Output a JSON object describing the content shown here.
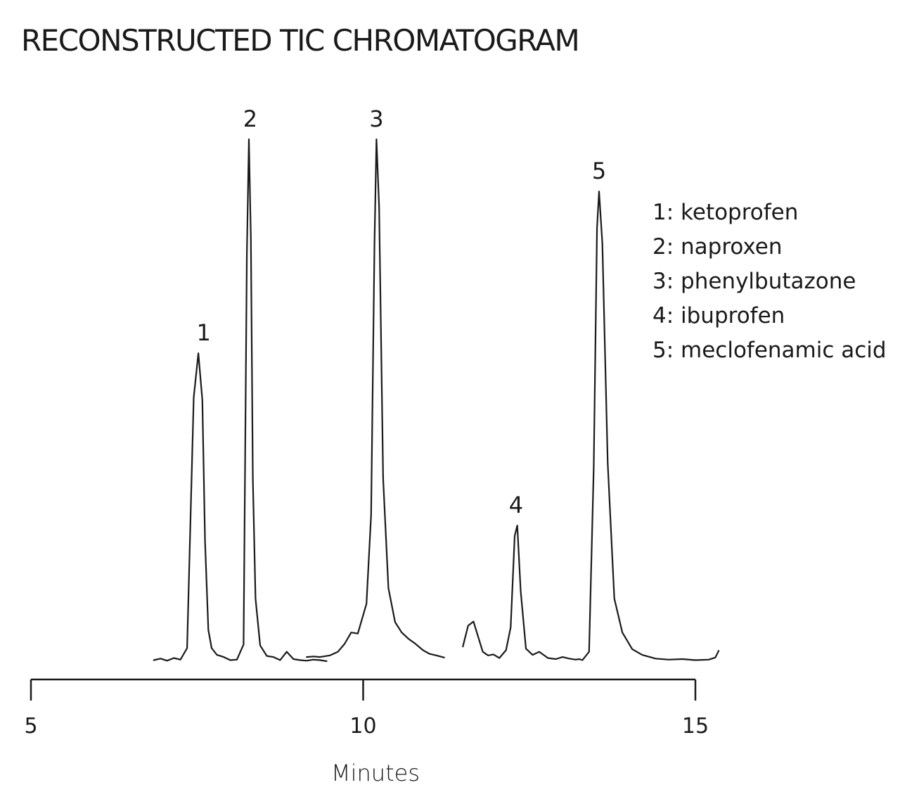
{
  "chart_data": {
    "type": "line",
    "title": "RECONSTRUCTED TIC CHROMATOGRAM",
    "xlabel": "Minutes",
    "ylabel": "",
    "xlim": [
      5,
      15
    ],
    "ylim": [
      0,
      100
    ],
    "x_ticks": [
      5,
      10,
      15
    ],
    "grid": false,
    "y_axis_visible": false,
    "legend_position": "right",
    "legend": [
      {
        "id": "1",
        "text": "1: ketoprofen"
      },
      {
        "id": "2",
        "text": "2: naproxen"
      },
      {
        "id": "3",
        "text": "3: phenylbutazone"
      },
      {
        "id": "4",
        "text": "4: ibuprofen"
      },
      {
        "id": "5",
        "text": "5: meclofenamic acid"
      }
    ],
    "peaks": [
      {
        "label": "1",
        "compound": "ketoprofen",
        "retention_time": 7.6,
        "height": 59
      },
      {
        "label": "2",
        "compound": "naproxen",
        "retention_time": 8.3,
        "height": 100
      },
      {
        "label": "3",
        "compound": "phenylbutazone",
        "retention_time": 10.2,
        "height": 100
      },
      {
        "label": "4",
        "compound": "ibuprofen",
        "retention_time": 12.3,
        "height": 26
      },
      {
        "label": "5",
        "compound": "meclofenamic acid",
        "retention_time": 13.55,
        "height": 90
      }
    ],
    "segments": [
      {
        "x": [
          6.85,
          6.95,
          7.05,
          7.15,
          7.25,
          7.35,
          7.45,
          7.52,
          7.58,
          7.62,
          7.67,
          7.72,
          7.8,
          7.9,
          8.0,
          8.1,
          8.2,
          8.25,
          8.28,
          8.31,
          8.34,
          8.38,
          8.45,
          8.55,
          8.65,
          8.75,
          8.85,
          8.95,
          9.05,
          9.15,
          9.25,
          9.35,
          9.45
        ],
        "y": [
          0.2,
          0.5,
          0.1,
          0.6,
          0.3,
          2.5,
          50.5,
          59,
          50,
          23,
          6,
          2.5,
          1.2,
          0.8,
          0.2,
          0.3,
          3.2,
          78,
          100,
          81,
          35,
          12,
          3,
          1.0,
          0.8,
          0.2,
          1.8,
          0.4,
          0.2,
          0.1,
          0.3,
          0.2,
          0.0
        ],
        "shape": "round"
      },
      {
        "x": [
          9.15,
          9.25,
          9.35,
          9.5,
          9.62,
          9.72,
          9.82,
          9.92,
          10.05,
          10.12,
          10.17,
          10.2,
          10.24,
          10.3,
          10.38,
          10.48,
          10.58,
          10.68,
          10.78,
          10.9,
          11.0,
          11.1,
          11.22
        ],
        "y": [
          0.8,
          0.9,
          0.8,
          1.1,
          1.8,
          3.3,
          5.5,
          5.3,
          11,
          28,
          80,
          100,
          87,
          35,
          14,
          7.5,
          5.5,
          4.3,
          3.4,
          2.1,
          1.4,
          1.1,
          0.7
        ],
        "shape": "round"
      },
      {
        "x": [
          11.5,
          11.58,
          11.66,
          11.74,
          11.8,
          11.88,
          11.96,
          12.05,
          12.15,
          12.22,
          12.28,
          12.32,
          12.37,
          12.45,
          12.55,
          12.65,
          12.78,
          12.9,
          13.0,
          13.1,
          13.2,
          13.25,
          13.3,
          13.4,
          13.47,
          13.52,
          13.55,
          13.6,
          13.68,
          13.78,
          13.9,
          14.05,
          14.2,
          14.4,
          14.6,
          14.8,
          15.0,
          15.2,
          15.3,
          15.35
        ],
        "y": [
          2.8,
          6.8,
          7.6,
          4.3,
          1.8,
          1.1,
          1.3,
          0.6,
          2.1,
          6.5,
          24,
          26,
          13.5,
          2.4,
          1.2,
          1.8,
          0.6,
          0.4,
          0.8,
          0.5,
          0.3,
          0.4,
          0.2,
          1.8,
          37,
          83,
          90,
          80,
          38,
          12,
          5.5,
          2.3,
          1.2,
          0.5,
          0.3,
          0.4,
          0.2,
          0.3,
          0.7,
          2.0
        ],
        "shape": "sharp"
      }
    ]
  }
}
